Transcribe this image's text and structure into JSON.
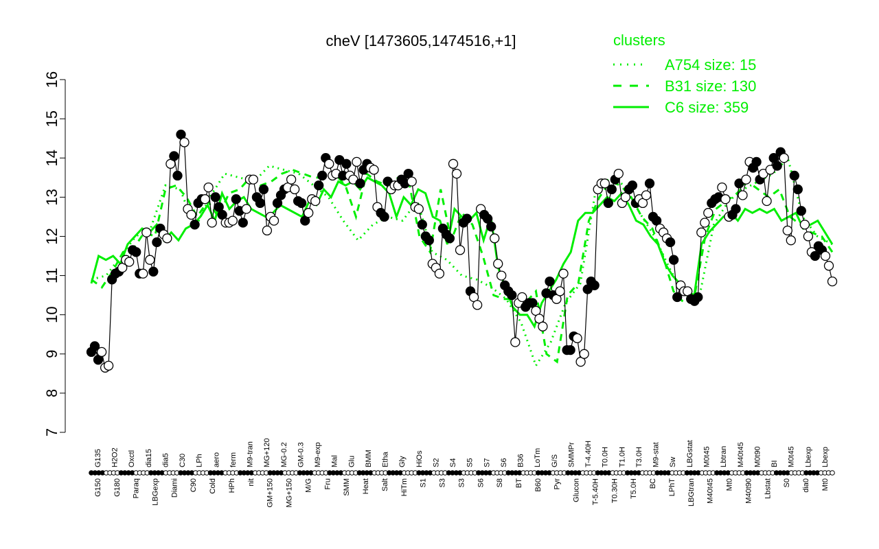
{
  "chart_data": {
    "type": "line",
    "title": "cheV [1473605,1474516,+1]",
    "xlabel": "",
    "ylabel": "",
    "ylim": [
      7,
      16
    ],
    "yticks": [
      7,
      8,
      9,
      10,
      11,
      12,
      13,
      14,
      15,
      16
    ],
    "grid": false,
    "legend": {
      "title": "clusters",
      "position": "top-right",
      "color": "#00ee00",
      "entries": [
        {
          "label": "A754 size: 15",
          "style": "dotted"
        },
        {
          "label": "B31 size: 130",
          "style": "dashed"
        },
        {
          "label": "C6 size: 359",
          "style": "solid"
        }
      ]
    },
    "x_labels_below": [
      "G150",
      "G180",
      "Paraq",
      "LBGexp",
      "Diami",
      "C90",
      "Cold",
      "HPh",
      "nit",
      "GM+150",
      "MG+150",
      "M/G",
      "Fru",
      "SMM",
      "Heat",
      "Salt",
      "HiTm",
      "S1",
      "S3",
      "S3",
      "S6",
      "S8",
      "BT",
      "B60",
      "Pyr",
      "Glucon",
      "T-5.40H",
      "T0.30H",
      "T5.0H",
      "BC",
      "LPhT",
      "LBGtran",
      "M40t45",
      "Mt0",
      "M40t90",
      "Lbstat",
      "S0",
      "dia0",
      "Mt0"
    ],
    "x_labels_above": [
      "G135",
      "H2O2",
      "Oxctl",
      "dia15",
      "dia5",
      "C30",
      "LPh",
      "aero",
      "ferm",
      "M9-tran",
      "MG+120",
      "MG-0.2",
      "GM-0.3",
      "M9-exp",
      "Mal",
      "Glu",
      "BMM",
      "Etha",
      "Gly",
      "HiOs",
      "S2",
      "S4",
      "S5",
      "S7",
      "S6",
      "B36",
      "LoTm",
      "G/S",
      "SMMPr",
      "T-4.40H",
      "T0.0H",
      "T1.0H",
      "T3.0H",
      "M9-stat",
      "Sw",
      "LBGstat",
      "M0t45",
      "Lbtran",
      "M40t45",
      "M0t90",
      "BI",
      "M0t45",
      "Lbexp",
      "Lbexp"
    ],
    "series": [
      {
        "name": "cheV expression",
        "marker": "circle (filled/open alternate by condition)",
        "values": [
          9.05,
          9.2,
          8.85,
          9.05,
          8.65,
          8.7,
          10.9,
          11.05,
          11.1,
          11.2,
          11.4,
          11.35,
          11.65,
          11.6,
          11.05,
          11.05,
          12.1,
          11.4,
          11.1,
          11.85,
          12.2,
          12.05,
          11.95,
          13.85,
          14.05,
          13.55,
          14.6,
          14.4,
          12.7,
          12.55,
          12.3,
          12.85,
          12.95,
          12.95,
          13.25,
          12.35,
          13.0,
          12.75,
          12.55,
          12.35,
          12.35,
          12.4,
          12.95,
          12.65,
          12.35,
          12.7,
          13.45,
          13.45,
          13.0,
          12.85,
          13.2,
          12.15,
          12.5,
          12.4,
          12.85,
          13.05,
          13.2,
          13.25,
          13.45,
          13.2,
          12.9,
          12.85,
          12.4,
          12.6,
          12.95,
          12.9,
          13.3,
          13.55,
          14.0,
          13.85,
          13.55,
          13.6,
          13.95,
          13.55,
          13.85,
          13.55,
          13.45,
          13.9,
          13.35,
          13.7,
          13.85,
          13.75,
          13.7,
          12.75,
          12.6,
          12.5,
          13.4,
          13.2,
          13.3,
          13.3,
          13.45,
          13.35,
          13.6,
          13.4,
          12.75,
          12.7,
          12.3,
          12.0,
          11.9,
          11.3,
          11.2,
          11.05,
          12.2,
          12.05,
          11.95,
          13.85,
          13.6,
          11.65,
          12.35,
          12.45,
          10.6,
          10.45,
          10.25,
          12.7,
          12.55,
          12.45,
          12.25,
          11.95,
          11.3,
          11.0,
          10.75,
          10.6,
          10.5,
          9.3,
          10.3,
          10.45,
          10.2,
          10.3,
          10.3,
          10.1,
          9.9,
          9.7,
          10.55,
          10.85,
          10.5,
          10.4,
          10.6,
          11.05,
          9.1,
          9.1,
          9.45,
          9.4,
          8.8,
          9.0,
          10.65,
          10.85,
          10.75,
          13.2,
          13.35,
          13.35,
          12.85,
          13.2,
          13.45,
          13.6,
          12.85,
          13.0,
          13.2,
          13.3,
          12.85,
          12.95,
          12.85,
          13.05,
          13.35,
          12.5,
          12.4,
          12.2,
          12.1,
          11.95,
          11.85,
          11.4,
          10.45,
          10.75,
          10.6,
          10.6,
          10.4,
          10.35,
          10.45,
          12.1,
          12.35,
          12.6,
          12.85,
          12.95,
          13.0,
          13.25,
          12.95,
          12.5,
          12.55,
          12.7,
          13.35,
          13.05,
          13.45,
          13.9,
          13.75,
          13.9,
          13.45,
          13.6,
          12.9,
          13.7,
          14.0,
          13.8,
          14.15,
          14.0,
          12.15,
          11.9,
          13.55,
          13.2,
          12.65,
          12.3,
          12.0,
          11.6,
          11.5,
          11.75,
          11.65,
          11.5,
          11.25,
          10.85
        ],
        "color": "#000000"
      },
      {
        "name": "C6 size: 359",
        "style": "solid",
        "color": "#00ee00",
        "values": [
          10.8,
          11.5,
          11.4,
          11.5,
          11.3,
          11.8,
          12.0,
          12.2,
          12.1,
          12.3,
          11.9,
          12.1,
          11.9,
          12.2,
          12.3,
          12.5,
          12.8,
          12.4,
          13.1,
          12.7,
          12.9,
          13.0,
          12.7,
          12.6,
          12.5,
          12.6,
          12.8,
          12.7,
          12.6,
          12.5,
          12.9,
          12.8,
          13.2,
          13.0,
          13.4,
          13.3,
          13.4,
          13.2,
          13.5,
          13.4,
          13.3,
          13.1,
          12.5,
          13.0,
          12.8,
          13.2,
          13.1,
          12.5,
          12.4,
          11.8,
          12.7,
          12.5,
          12.4,
          12.6,
          11.9,
          12.5,
          11.2,
          10.7,
          10.2,
          10.0,
          10.0,
          9.7,
          10.3,
          10.6,
          10.9,
          11.3,
          11.6,
          12.4,
          12.6,
          12.6,
          12.8,
          13.0,
          12.9,
          13.1,
          12.8,
          12.4,
          12.3,
          12.0,
          11.8,
          11.3,
          11.0,
          10.8,
          10.6,
          10.5,
          11.8,
          12.1,
          12.3,
          12.5,
          12.6,
          12.4,
          12.7,
          12.6,
          12.7,
          12.6,
          12.7,
          12.4,
          12.5,
          12.6,
          12.2,
          12.3,
          12.4,
          12.1,
          11.8
        ],
        "note": "approximate trace"
      },
      {
        "name": "B31 size: 130",
        "style": "dashed",
        "color": "#00ee00",
        "values": [
          10.9,
          10.7,
          11.1,
          11.6,
          11.7,
          12.1,
          12.0,
          13.2,
          13.3,
          13.0,
          12.5,
          12.9,
          12.5,
          13.1,
          13.2,
          13.5,
          13.3,
          13.4,
          13.6,
          13.7,
          13.6,
          13.5,
          13.5,
          13.6,
          13.3,
          12.5,
          13.6,
          13.4,
          13.3,
          13.5,
          13.4,
          12.0,
          11.6,
          13.2,
          11.9,
          12.6,
          12.3,
          11.5,
          10.5,
          10.4,
          10.4,
          10.3,
          10.6,
          9.0,
          8.8,
          10.5,
          10.8,
          12.4,
          13.0,
          13.4,
          13.3,
          13.0,
          12.5,
          12.2,
          11.5,
          10.6,
          10.3,
          10.5,
          12.0,
          12.7,
          12.9,
          13.1,
          13.4,
          13.2,
          13.0,
          13.2,
          12.5,
          12.3,
          12.1,
          12.0,
          11.6
        ],
        "note": "approximate trace"
      },
      {
        "name": "A754 size: 15",
        "style": "dotted",
        "color": "#00ee00",
        "values": [
          10.9,
          11.0,
          11.5,
          12.0,
          12.2,
          13.3,
          13.2,
          12.2,
          13.0,
          13.6,
          13.5,
          13.4,
          13.8,
          13.7,
          13.6,
          13.3,
          13.0,
          12.4,
          11.9,
          12.3,
          12.5,
          12.4,
          12.9,
          11.6,
          11.4,
          11.0,
          10.9,
          10.7,
          10.4,
          9.8,
          8.7,
          9.3,
          10.3,
          10.8,
          13.1,
          13.5,
          13.3,
          12.6,
          12.0,
          11.2,
          10.5,
          10.4,
          12.3,
          12.9,
          13.2,
          13.4,
          13.6,
          14.0,
          12.5,
          12.0,
          11.8
        ],
        "note": "approximate trace"
      }
    ]
  }
}
